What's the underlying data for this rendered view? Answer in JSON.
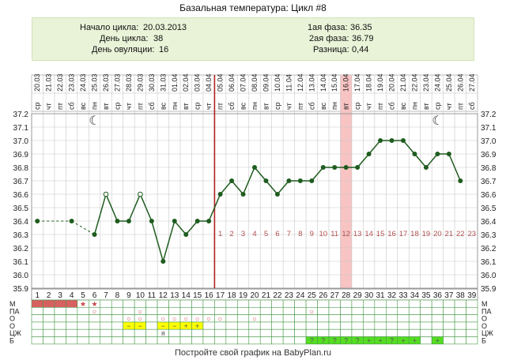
{
  "title": "Базальная температура: Цикл #8",
  "info": {
    "start_label": "Начало цикла:",
    "start_value": "20.03.2013",
    "cycle_day_label": "День цикла:",
    "cycle_day_value": "38",
    "ovulation_label": "День овуляции:",
    "ovulation_value": "16",
    "phase1_label": "1ая фаза:",
    "phase1_value": "36.35",
    "phase2_label": "2ая фаза:",
    "phase2_value": "36.79",
    "diff_label": "Разница:",
    "diff_value": "0,44"
  },
  "footer": "Постройте свой график на BabyPlan.ru",
  "chart_data": {
    "type": "line",
    "title": "Базальная температура: Цикл #8",
    "xlabel": "",
    "ylabel": "",
    "ylim": [
      35.9,
      37.2
    ],
    "y_ticks": [
      "37.2",
      "37.1",
      "37.0",
      "36.9",
      "36.8",
      "36.7",
      "36.6",
      "36.5",
      "36.4",
      "36.3",
      "36.2",
      "36.1",
      "36.0",
      "35.9"
    ],
    "grid": true,
    "days": [
      "1",
      "2",
      "3",
      "4",
      "5",
      "6",
      "7",
      "8",
      "9",
      "10",
      "11",
      "12",
      "13",
      "14",
      "15",
      "16",
      "17",
      "18",
      "19",
      "20",
      "21",
      "22",
      "23",
      "24",
      "25",
      "26",
      "27",
      "28",
      "29",
      "30",
      "31",
      "32",
      "33",
      "34",
      "35",
      "36",
      "37",
      "38",
      "39"
    ],
    "dates": [
      "20.03",
      "21.03",
      "22.03",
      "23.03",
      "24.03",
      "25.03",
      "26.03",
      "27.03",
      "28.03",
      "29.03",
      "30.03",
      "31.03",
      "01.04",
      "02.04",
      "03.04",
      "04.04",
      "05.04",
      "06.04",
      "07.04",
      "08.04",
      "09.04",
      "10.04",
      "11.04",
      "12.04",
      "13.04",
      "14.04",
      "15.04",
      "16.04",
      "17.04",
      "18.04",
      "19.04",
      "20.04",
      "21.04",
      "22.04",
      "23.04",
      "24.04",
      "25.04",
      "26.04",
      "27.04"
    ],
    "weekdays": [
      "ср",
      "чт",
      "пт",
      "сб",
      "вс",
      "пн",
      "вт",
      "ср",
      "чт",
      "пт",
      "сб",
      "вс",
      "пн",
      "вт",
      "ср",
      "чт",
      "пт",
      "сб",
      "вс",
      "пн",
      "вт",
      "ср",
      "чт",
      "пт",
      "сб",
      "вс",
      "пн",
      "вт",
      "ср",
      "чт",
      "пт",
      "сб",
      "вс",
      "пн",
      "вт",
      "ср",
      "чт",
      "пт",
      "сб"
    ],
    "temperatures": [
      36.4,
      null,
      null,
      36.4,
      null,
      36.3,
      36.6,
      36.4,
      36.4,
      36.6,
      36.4,
      36.1,
      36.4,
      36.3,
      36.4,
      36.4,
      36.6,
      36.7,
      36.6,
      36.8,
      36.7,
      36.6,
      36.7,
      36.7,
      36.7,
      36.8,
      36.8,
      36.8,
      36.8,
      36.9,
      37.0,
      37.0,
      37.0,
      36.9,
      36.8,
      36.9,
      36.9,
      36.7,
      null
    ],
    "open_points_days": [
      7,
      10
    ],
    "dashed_segments": [
      [
        1,
        4
      ],
      [
        4,
        6
      ]
    ],
    "ovulation_day": 16,
    "highlight_day": 28,
    "luteal_numbers": [
      "1",
      "2",
      "3",
      "4",
      "5",
      "6",
      "7",
      "8",
      "9",
      "10",
      "11",
      "12",
      "13",
      "14",
      "15",
      "16",
      "17",
      "18",
      "19",
      "20",
      "21",
      "22",
      "23"
    ],
    "moon_days": [
      6,
      36
    ],
    "colors": {
      "line": "#1f5c1f",
      "ovulation_line": "#b22222",
      "highlight": "#f7c3c3",
      "luteal_numbers": "#b25050",
      "grid": "#c8c8c8",
      "menses": "#d76060",
      "yellow_cell": "#ffff00",
      "green_cell": "#55dd22"
    },
    "symptom_rows": [
      {
        "label": "М",
        "cells": {
          "1": "fill",
          "2": "fill",
          "3": "fill",
          "4": "fill",
          "5": "★",
          "6": "★"
        }
      },
      {
        "label": "ПА",
        "cells": {
          "6": "○",
          "10": "○",
          "25": "○"
        }
      },
      {
        "label": "О",
        "cells": {
          "9": "○",
          "10": "○",
          "12": "○",
          "13": "○",
          "14": "○",
          "15": "○",
          "16": "○",
          "17": "○",
          "20": "○"
        }
      },
      {
        "label": "О",
        "cells": {
          "9": "−",
          "10": "−",
          "12": "−",
          "13": "−",
          "14": "+",
          "15": "+"
        }
      },
      {
        "label": "ЦЖ",
        "cells": {
          "12": "я"
        }
      },
      {
        "label": "Б",
        "cells": {
          "25": "?",
          "26": "?",
          "27": "?",
          "28": "?",
          "29": "?",
          "30": "+",
          "31": "+",
          "32": "?",
          "33": "+",
          "34": "+",
          "36": "+"
        }
      }
    ]
  }
}
